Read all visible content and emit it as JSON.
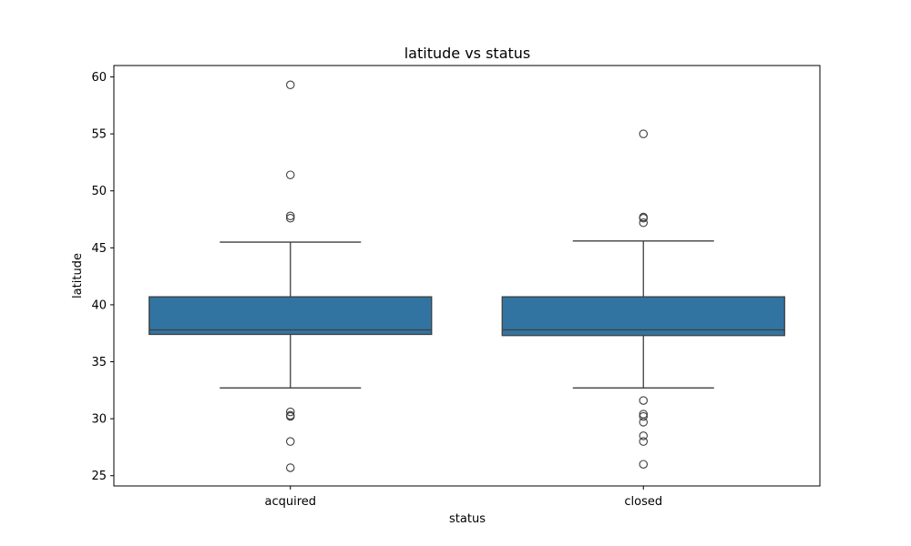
{
  "chart_data": {
    "type": "box",
    "title": "latitude vs status",
    "xlabel": "status",
    "ylabel": "latitude",
    "ylim": [
      24.1,
      61.0
    ],
    "yticks": [
      25,
      30,
      35,
      40,
      45,
      50,
      55,
      60
    ],
    "grid": false,
    "legend": "none",
    "box_color": "#3274a1",
    "edge_color": "#3f3f3f",
    "categories": [
      "acquired",
      "closed"
    ],
    "boxes": [
      {
        "category": "acquired",
        "whisker_low": 32.7,
        "q1": 37.4,
        "median": 37.8,
        "q3": 40.7,
        "whisker_high": 45.5,
        "outliers": [
          59.3,
          51.4,
          47.8,
          47.6,
          30.6,
          30.3,
          30.2,
          28.0,
          25.7
        ]
      },
      {
        "category": "closed",
        "whisker_low": 32.7,
        "q1": 37.3,
        "median": 37.8,
        "q3": 40.7,
        "whisker_high": 45.6,
        "outliers": [
          55.0,
          47.7,
          47.6,
          47.2,
          31.6,
          30.4,
          30.2,
          29.7,
          28.5,
          28.0,
          26.0
        ]
      }
    ]
  }
}
